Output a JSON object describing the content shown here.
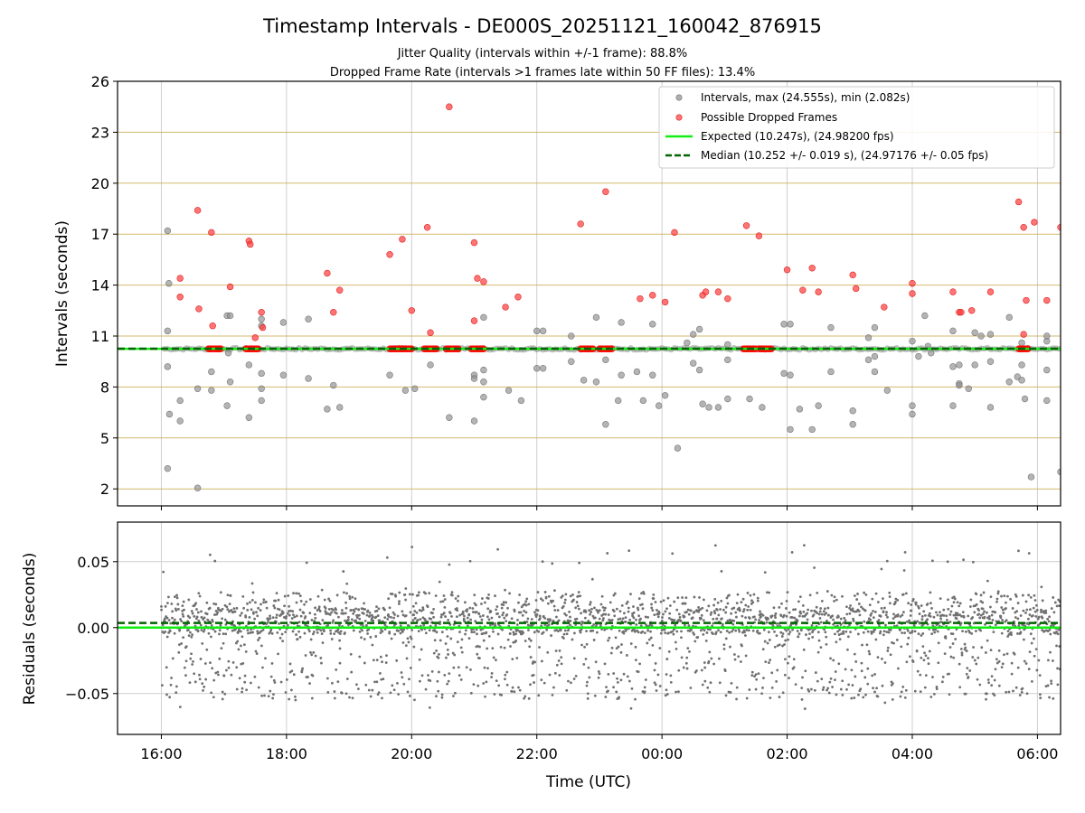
{
  "chart_data": [
    {
      "type": "scatter",
      "title": "Timestamp Intervals - DE000S_20251121_160042_876915",
      "subtitle_1": "Jitter Quality (intervals within +/-1 frame): 88.8%",
      "subtitle_2": "Dropped Frame Rate (intervals >1 frames late within 50 FF files): 13.4%",
      "ylabel": "Intervals (seconds)",
      "xlim_hours": [
        15.3,
        30.37
      ],
      "ylim": [
        1,
        26
      ],
      "yticks": [
        2,
        5,
        8,
        11,
        14,
        17,
        20,
        23,
        26
      ],
      "ytick_labels": [
        "2",
        "5",
        "8",
        "11",
        "14",
        "17",
        "20",
        "23",
        "26"
      ],
      "grid": true,
      "legend_position": "top-right",
      "legend": [
        "Intervals, max (24.555s), min (2.082s)",
        "Possible Dropped Frames",
        "Expected (10.247s), (24.98200 fps)",
        "Median (10.252 +/- 0.019 s), (24.97176 +/- 0.05 fps)"
      ],
      "expected": 10.247,
      "median": 10.252,
      "intervals_gray": [
        [
          16.1,
          17.2
        ],
        [
          16.12,
          14.1
        ],
        [
          16.1,
          11.3
        ],
        [
          16.1,
          9.2
        ],
        [
          16.13,
          6.4
        ],
        [
          16.1,
          3.2
        ],
        [
          16.3,
          7.2
        ],
        [
          16.3,
          6.0
        ],
        [
          16.58,
          7.9
        ],
        [
          16.58,
          2.05
        ],
        [
          16.8,
          8.9
        ],
        [
          16.8,
          7.8
        ],
        [
          17.05,
          12.2
        ],
        [
          17.1,
          12.2
        ],
        [
          17.07,
          10.0
        ],
        [
          17.1,
          8.3
        ],
        [
          17.05,
          6.9
        ],
        [
          17.4,
          9.3
        ],
        [
          17.4,
          6.2
        ],
        [
          17.6,
          12.0
        ],
        [
          17.6,
          11.6
        ],
        [
          17.6,
          8.8
        ],
        [
          17.6,
          7.9
        ],
        [
          17.6,
          7.2
        ],
        [
          17.95,
          11.8
        ],
        [
          17.95,
          8.7
        ],
        [
          18.35,
          12.0
        ],
        [
          18.35,
          8.5
        ],
        [
          18.65,
          6.7
        ],
        [
          18.75,
          8.1
        ],
        [
          18.85,
          6.8
        ],
        [
          19.65,
          8.7
        ],
        [
          19.9,
          7.8
        ],
        [
          20.05,
          7.9
        ],
        [
          20.3,
          9.3
        ],
        [
          20.6,
          6.2
        ],
        [
          21.0,
          8.7
        ],
        [
          21.0,
          8.5
        ],
        [
          21.0,
          6.0
        ],
        [
          21.15,
          12.1
        ],
        [
          21.15,
          9.0
        ],
        [
          21.15,
          8.3
        ],
        [
          21.15,
          7.4
        ],
        [
          21.55,
          7.8
        ],
        [
          21.75,
          7.2
        ],
        [
          22.0,
          11.3
        ],
        [
          22.0,
          9.1
        ],
        [
          22.1,
          11.3
        ],
        [
          22.1,
          9.1
        ],
        [
          22.55,
          11.0
        ],
        [
          22.55,
          9.5
        ],
        [
          22.75,
          8.4
        ],
        [
          22.95,
          12.1
        ],
        [
          22.95,
          8.3
        ],
        [
          23.1,
          9.6
        ],
        [
          23.1,
          5.8
        ],
        [
          23.3,
          7.2
        ],
        [
          23.35,
          8.7
        ],
        [
          23.35,
          11.8
        ],
        [
          23.6,
          8.9
        ],
        [
          23.7,
          7.2
        ],
        [
          23.85,
          11.7
        ],
        [
          23.85,
          8.7
        ],
        [
          23.95,
          6.9
        ],
        [
          24.05,
          7.5
        ],
        [
          24.25,
          4.4
        ],
        [
          24.4,
          10.6
        ],
        [
          24.5,
          11.1
        ],
        [
          24.5,
          9.4
        ],
        [
          24.6,
          11.4
        ],
        [
          24.6,
          9.0
        ],
        [
          24.65,
          7.0
        ],
        [
          24.75,
          6.8
        ],
        [
          24.9,
          6.8
        ],
        [
          25.05,
          10.5
        ],
        [
          25.05,
          9.6
        ],
        [
          25.05,
          7.3
        ],
        [
          25.4,
          7.3
        ],
        [
          25.6,
          6.8
        ],
        [
          25.95,
          11.7
        ],
        [
          25.95,
          8.8
        ],
        [
          26.05,
          11.7
        ],
        [
          26.05,
          8.7
        ],
        [
          26.05,
          5.5
        ],
        [
          26.2,
          6.7
        ],
        [
          26.4,
          5.5
        ],
        [
          26.5,
          6.9
        ],
        [
          26.7,
          11.5
        ],
        [
          26.7,
          8.9
        ],
        [
          27.05,
          5.8
        ],
        [
          27.05,
          6.6
        ],
        [
          27.3,
          10.9
        ],
        [
          27.3,
          9.6
        ],
        [
          27.4,
          11.5
        ],
        [
          27.4,
          9.8
        ],
        [
          27.4,
          8.9
        ],
        [
          27.6,
          7.8
        ],
        [
          28.0,
          10.7
        ],
        [
          28.0,
          6.9
        ],
        [
          28.0,
          6.4
        ],
        [
          28.1,
          9.8
        ],
        [
          28.2,
          12.2
        ],
        [
          28.25,
          10.4
        ],
        [
          28.3,
          10.0
        ],
        [
          28.65,
          11.3
        ],
        [
          28.65,
          9.2
        ],
        [
          28.65,
          6.9
        ],
        [
          28.75,
          8.2
        ],
        [
          28.75,
          8.1
        ],
        [
          28.75,
          9.3
        ],
        [
          28.9,
          7.9
        ],
        [
          29.0,
          11.2
        ],
        [
          29.0,
          9.3
        ],
        [
          29.1,
          11.0
        ],
        [
          29.25,
          11.1
        ],
        [
          29.25,
          9.5
        ],
        [
          29.25,
          6.8
        ],
        [
          29.55,
          12.1
        ],
        [
          29.55,
          8.3
        ],
        [
          29.68,
          8.6
        ],
        [
          29.75,
          10.6
        ],
        [
          29.75,
          9.3
        ],
        [
          29.75,
          8.4
        ],
        [
          29.8,
          7.3
        ],
        [
          29.9,
          2.7
        ],
        [
          30.15,
          11.0
        ],
        [
          30.15,
          10.7
        ],
        [
          30.15,
          9.0
        ],
        [
          30.15,
          7.2
        ],
        [
          30.37,
          3.0
        ]
      ],
      "dropped_frames": [
        [
          16.3,
          14.4
        ],
        [
          16.3,
          13.3
        ],
        [
          16.58,
          18.4
        ],
        [
          16.6,
          12.6
        ],
        [
          16.8,
          17.1
        ],
        [
          16.82,
          11.6
        ],
        [
          17.1,
          13.9
        ],
        [
          17.4,
          16.6
        ],
        [
          17.42,
          16.4
        ],
        [
          17.5,
          10.9
        ],
        [
          17.6,
          12.4
        ],
        [
          17.62,
          11.5
        ],
        [
          18.65,
          14.7
        ],
        [
          18.75,
          12.4
        ],
        [
          18.85,
          13.7
        ],
        [
          19.65,
          15.8
        ],
        [
          19.85,
          16.7
        ],
        [
          20.0,
          12.5
        ],
        [
          20.25,
          17.4
        ],
        [
          20.3,
          11.2
        ],
        [
          20.6,
          24.5
        ],
        [
          21.0,
          16.5
        ],
        [
          21.0,
          11.9
        ],
        [
          21.05,
          14.4
        ],
        [
          21.15,
          14.2
        ],
        [
          21.5,
          12.7
        ],
        [
          21.7,
          13.3
        ],
        [
          22.7,
          17.6
        ],
        [
          23.1,
          19.5
        ],
        [
          23.65,
          13.2
        ],
        [
          23.85,
          13.4
        ],
        [
          24.05,
          13.0
        ],
        [
          24.2,
          17.1
        ],
        [
          24.65,
          13.4
        ],
        [
          24.7,
          13.6
        ],
        [
          24.9,
          13.6
        ],
        [
          25.05,
          13.2
        ],
        [
          25.35,
          17.5
        ],
        [
          25.55,
          16.9
        ],
        [
          26.0,
          14.9
        ],
        [
          26.25,
          13.7
        ],
        [
          26.4,
          15.0
        ],
        [
          26.5,
          13.6
        ],
        [
          27.05,
          14.6
        ],
        [
          27.1,
          13.8
        ],
        [
          27.55,
          12.7
        ],
        [
          28.0,
          14.1
        ],
        [
          28.0,
          13.5
        ],
        [
          28.65,
          13.6
        ],
        [
          28.75,
          12.4
        ],
        [
          28.78,
          12.4
        ],
        [
          28.95,
          12.5
        ],
        [
          29.25,
          13.6
        ],
        [
          29.7,
          18.9
        ],
        [
          29.78,
          17.4
        ],
        [
          29.78,
          11.1
        ],
        [
          29.82,
          13.1
        ],
        [
          29.95,
          17.7
        ],
        [
          30.15,
          13.1
        ],
        [
          30.37,
          17.4
        ]
      ],
      "dropped_cluster_ranges_hours": [
        [
          16.75,
          16.95
        ],
        [
          17.35,
          17.55
        ],
        [
          19.65,
          19.85
        ],
        [
          19.85,
          20.0
        ],
        [
          20.2,
          20.4
        ],
        [
          20.55,
          20.75
        ],
        [
          20.95,
          21.15
        ],
        [
          22.7,
          22.9
        ],
        [
          23.0,
          23.2
        ],
        [
          25.3,
          25.5
        ],
        [
          25.55,
          25.75
        ],
        [
          29.7,
          29.85
        ]
      ]
    },
    {
      "type": "scatter",
      "ylabel": "Residuals (seconds)",
      "xlabel": "Time (UTC)",
      "xlim_hours": [
        15.3,
        30.37
      ],
      "ylim": [
        -0.081,
        0.08
      ],
      "yticks": [
        0.05,
        0.0,
        -0.05
      ],
      "ytick_labels": [
        "0.05",
        "0.00",
        "−0.05"
      ],
      "xticks_hours": [
        16,
        18,
        20,
        22,
        24,
        26,
        28,
        30
      ],
      "xtick_labels": [
        "16:00",
        "18:00",
        "20:00",
        "22:00",
        "00:00",
        "02:00",
        "04:00",
        "06:00"
      ],
      "grid": true,
      "expected_residual": 0.0,
      "median_residual": 0.0035,
      "residual_sample_count": 2600,
      "residual_band_core": [
        -0.005,
        0.015
      ],
      "residual_band_spread": [
        -0.062,
        0.066
      ]
    }
  ],
  "colors": {
    "interval": "#8c8c8c",
    "dropped": "#ff3b3b",
    "expected": "#11ee11",
    "median": "#006400",
    "cluster": "#ff0000",
    "band": "#c8a84a",
    "residual": "#707070"
  }
}
